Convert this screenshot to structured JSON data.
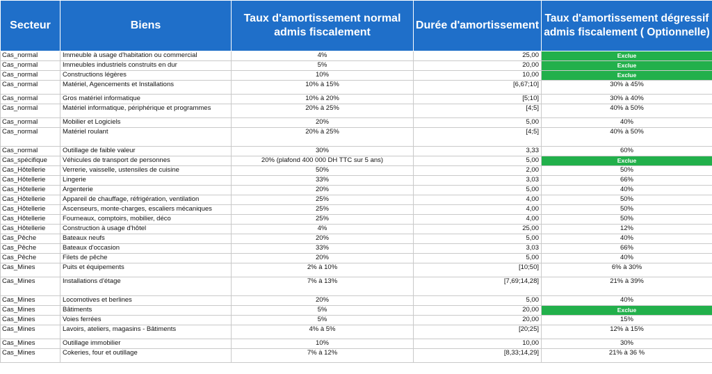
{
  "headers": {
    "secteur": "Secteur",
    "biens": "Biens",
    "taux_normal": "Taux d'amortissement normal admis fiscalement",
    "duree": "Durée d'amortissement",
    "taux_degressif": "Taux d'amortissement dégressif  admis fiscalement ( Optionnelle)"
  },
  "colors": {
    "header_bg": "#1f6fc9",
    "exclue_bg": "#22b04b"
  },
  "rows": [
    {
      "secteur": "Cas_normal",
      "bien": "Immeuble à usage d'habitation ou commercial",
      "taux": "4%",
      "duree": "25,00",
      "degressif": "Exclue",
      "exclue": true,
      "h": 14
    },
    {
      "secteur": "Cas_normal",
      "bien": "Immeubles industriels construits en dur",
      "taux": "5%",
      "duree": "20,00",
      "degressif": "Exclue",
      "exclue": true,
      "h": 14
    },
    {
      "secteur": "Cas_normal",
      "bien": "Constructions légères",
      "taux": "10%",
      "duree": "10,00",
      "degressif": "Exclue",
      "exclue": true,
      "h": 14
    },
    {
      "secteur": "Cas_normal",
      "bien": "Matériel, Agencements et Installations",
      "taux": "10% à 15%",
      "duree": "[6,67;10]",
      "degressif": "30% à 45%",
      "exclue": false,
      "h": 20
    },
    {
      "secteur": "Cas_normal",
      "bien": "Gros matériel informatique",
      "taux": "10% à 20%",
      "duree": "[5;10]",
      "degressif": "30% à 40%",
      "exclue": false,
      "h": 14
    },
    {
      "secteur": "Cas_normal",
      "bien": "Matériel informatique, périphérique et programmes",
      "taux": "20% à 25%",
      "duree": "[4;5]",
      "degressif": "40% à 50%",
      "exclue": false,
      "h": 20
    },
    {
      "secteur": "Cas_normal",
      "bien": "Mobilier et Logiciels",
      "taux": "20%",
      "duree": "5,00",
      "degressif": "40%",
      "exclue": false,
      "h": 14
    },
    {
      "secteur": "Cas_normal",
      "bien": "Matériel roulant",
      "taux": "20% à 25%",
      "duree": "[4;5]",
      "degressif": "40% à 50%",
      "exclue": false,
      "h": 27
    },
    {
      "secteur": "Cas_normal",
      "bien": "Outillage de faible valeur",
      "taux": "30%",
      "duree": "3,33",
      "degressif": "60%",
      "exclue": false,
      "h": 14
    },
    {
      "secteur": "Cas_spécifique",
      "bien": "Véhicules de transport de personnes",
      "taux": "20% (plafond 400 000 DH TTC sur 5 ans)",
      "duree": "5,00",
      "degressif": "Exclue",
      "exclue": true,
      "h": 14
    },
    {
      "secteur": "Cas_Hôtellerie",
      "bien": "Verrerie, vaisselle, ustensiles de cuisine",
      "taux": "50%",
      "duree": "2,00",
      "degressif": "50%",
      "exclue": false,
      "h": 14
    },
    {
      "secteur": "Cas_Hôtellerie",
      "bien": "Lingerie",
      "taux": "33%",
      "duree": "3,03",
      "degressif": "66%",
      "exclue": false,
      "h": 14
    },
    {
      "secteur": "Cas_Hôtellerie",
      "bien": "Argenterie",
      "taux": "20%",
      "duree": "5,00",
      "degressif": "40%",
      "exclue": false,
      "h": 14
    },
    {
      "secteur": "Cas_Hôtellerie",
      "bien": "Appareil de chauffage, réfrigération, ventilation",
      "taux": "25%",
      "duree": "4,00",
      "degressif": "50%",
      "exclue": false,
      "h": 14
    },
    {
      "secteur": "Cas_Hôtellerie",
      "bien": "Ascenseurs, monte-charges, escaliers mécaniques",
      "taux": "25%",
      "duree": "4,00",
      "degressif": "50%",
      "exclue": false,
      "h": 14
    },
    {
      "secteur": "Cas_Hôtellerie",
      "bien": "Fourneaux, comptoirs, mobilier, déco",
      "taux": "25%",
      "duree": "4,00",
      "degressif": "50%",
      "exclue": false,
      "h": 14
    },
    {
      "secteur": "Cas_Hôtellerie",
      "bien": "Construction à usage d'hôtel",
      "taux": "4%",
      "duree": "25,00",
      "degressif": "12%",
      "exclue": false,
      "h": 14
    },
    {
      "secteur": "Cas_Pêche",
      "bien": "Bateaux neufs",
      "taux": "20%",
      "duree": "5,00",
      "degressif": "40%",
      "exclue": false,
      "h": 14
    },
    {
      "secteur": "Cas_Pêche",
      "bien": "Bateaux d'occasion",
      "taux": "33%",
      "duree": "3,03",
      "degressif": "66%",
      "exclue": false,
      "h": 14
    },
    {
      "secteur": "Cas_Pêche",
      "bien": "Filets de pêche",
      "taux": "20%",
      "duree": "5,00",
      "degressif": "40%",
      "exclue": false,
      "h": 14
    },
    {
      "secteur": "Cas_Mines",
      "bien": "Puits et équipements",
      "taux": "2% à 10%",
      "duree": "[10;50]",
      "degressif": "6% à 30%",
      "exclue": false,
      "h": 20
    },
    {
      "secteur": "Cas_Mines",
      "bien": "Installations d'étage",
      "taux": "7% à 13%",
      "duree": "[7,69;14,28]",
      "degressif": "21% à 39%",
      "exclue": false,
      "h": 27
    },
    {
      "secteur": "Cas_Mines",
      "bien": "Locomotives et berlines",
      "taux": "20%",
      "duree": "5,00",
      "degressif": "40%",
      "exclue": false,
      "h": 14
    },
    {
      "secteur": "Cas_Mines",
      "bien": "Bâtiments",
      "taux": "5%",
      "duree": "20,00",
      "degressif": "Exclue",
      "exclue": true,
      "h": 14
    },
    {
      "secteur": "Cas_Mines",
      "bien": "Voies ferrées",
      "taux": "5%",
      "duree": "20,00",
      "degressif": "15%",
      "exclue": false,
      "h": 14
    },
    {
      "secteur": "Cas_Mines",
      "bien": "Lavoirs, ateliers, magasins - Bâtiments",
      "taux": "4% à 5%",
      "duree": "[20;25]",
      "degressif": "12% à 15%",
      "exclue": false,
      "h": 20
    },
    {
      "secteur": "Cas_Mines",
      "bien": "Outillage immobilier",
      "taux": "10%",
      "duree": "10,00",
      "degressif": "30%",
      "exclue": false,
      "h": 14
    },
    {
      "secteur": "Cas_Mines",
      "bien": "Cokeries, four et outillage",
      "taux": "7% à 12%",
      "duree": "[8,33;14,29]",
      "degressif": "21% à 36 %",
      "exclue": false,
      "h": 20
    }
  ]
}
